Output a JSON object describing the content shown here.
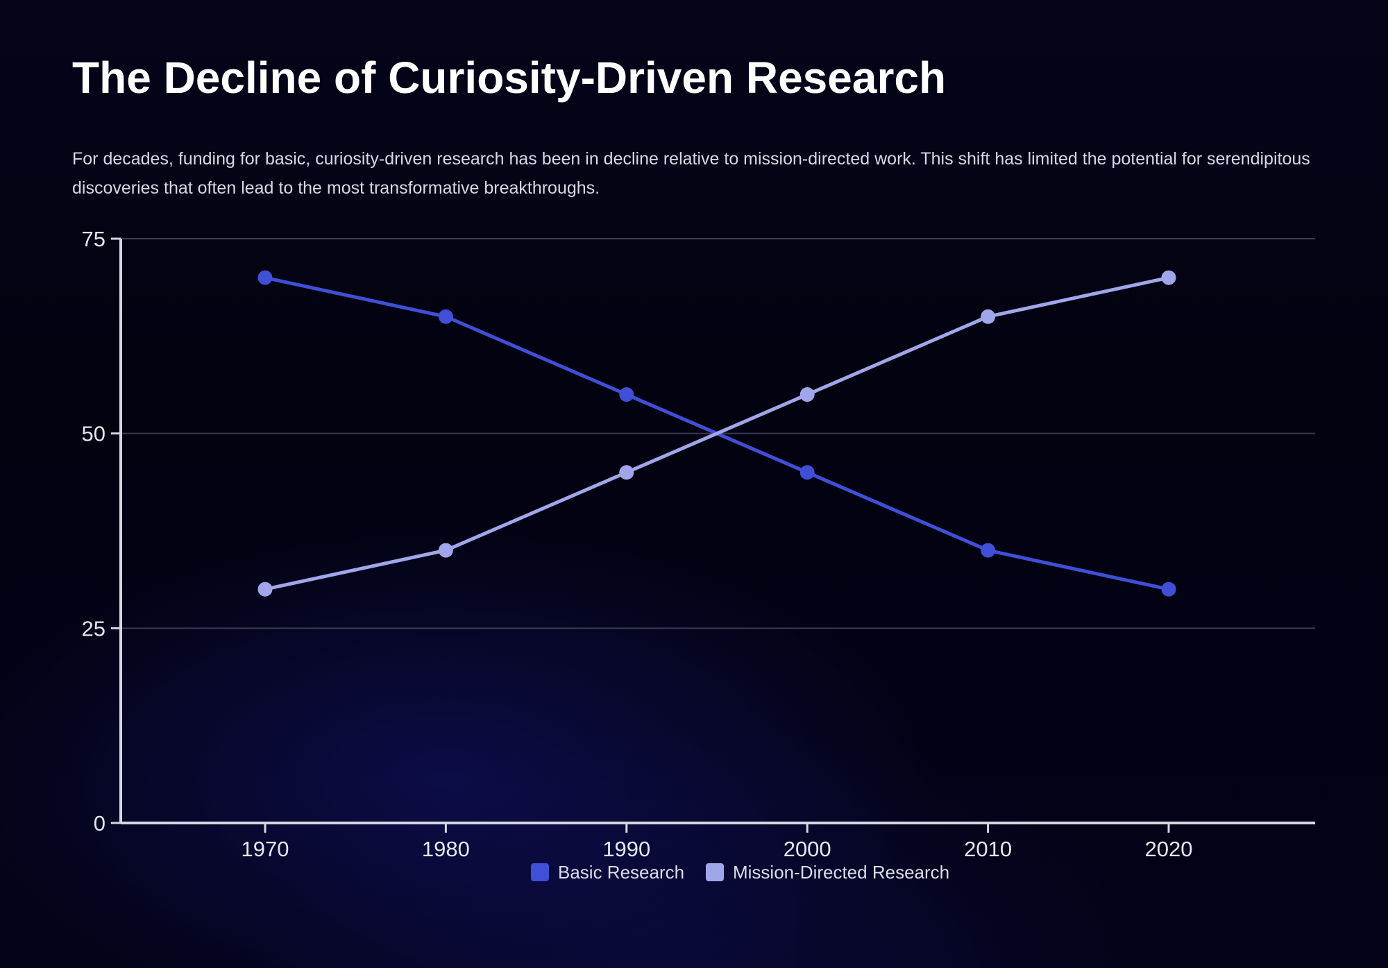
{
  "title": "The Decline of Curiosity-Driven Research",
  "subtitle": "For decades, funding for basic, curiosity-driven research has been in decline relative to mission-directed work. This shift has limited the potential for serendipitous discoveries that often lead to the most transformative breakthroughs.",
  "colors": {
    "basic": "#3f4fd6",
    "mission": "#a1a6ea",
    "axis": "#d6d6e2",
    "grid": "#3a3a4e"
  },
  "chart_data": {
    "type": "line",
    "title": "",
    "xlabel": "",
    "ylabel": "",
    "x": [
      "1970",
      "1980",
      "1990",
      "2000",
      "2010",
      "2020"
    ],
    "ylim": [
      0,
      75
    ],
    "yticks": [
      "0",
      "25",
      "50",
      "75"
    ],
    "grid": true,
    "legend_position": "bottom-center",
    "series": [
      {
        "name": "Basic Research",
        "values": [
          70,
          65,
          55,
          45,
          35,
          30
        ]
      },
      {
        "name": "Mission-Directed Research",
        "values": [
          30,
          35,
          45,
          55,
          65,
          70
        ]
      }
    ]
  }
}
